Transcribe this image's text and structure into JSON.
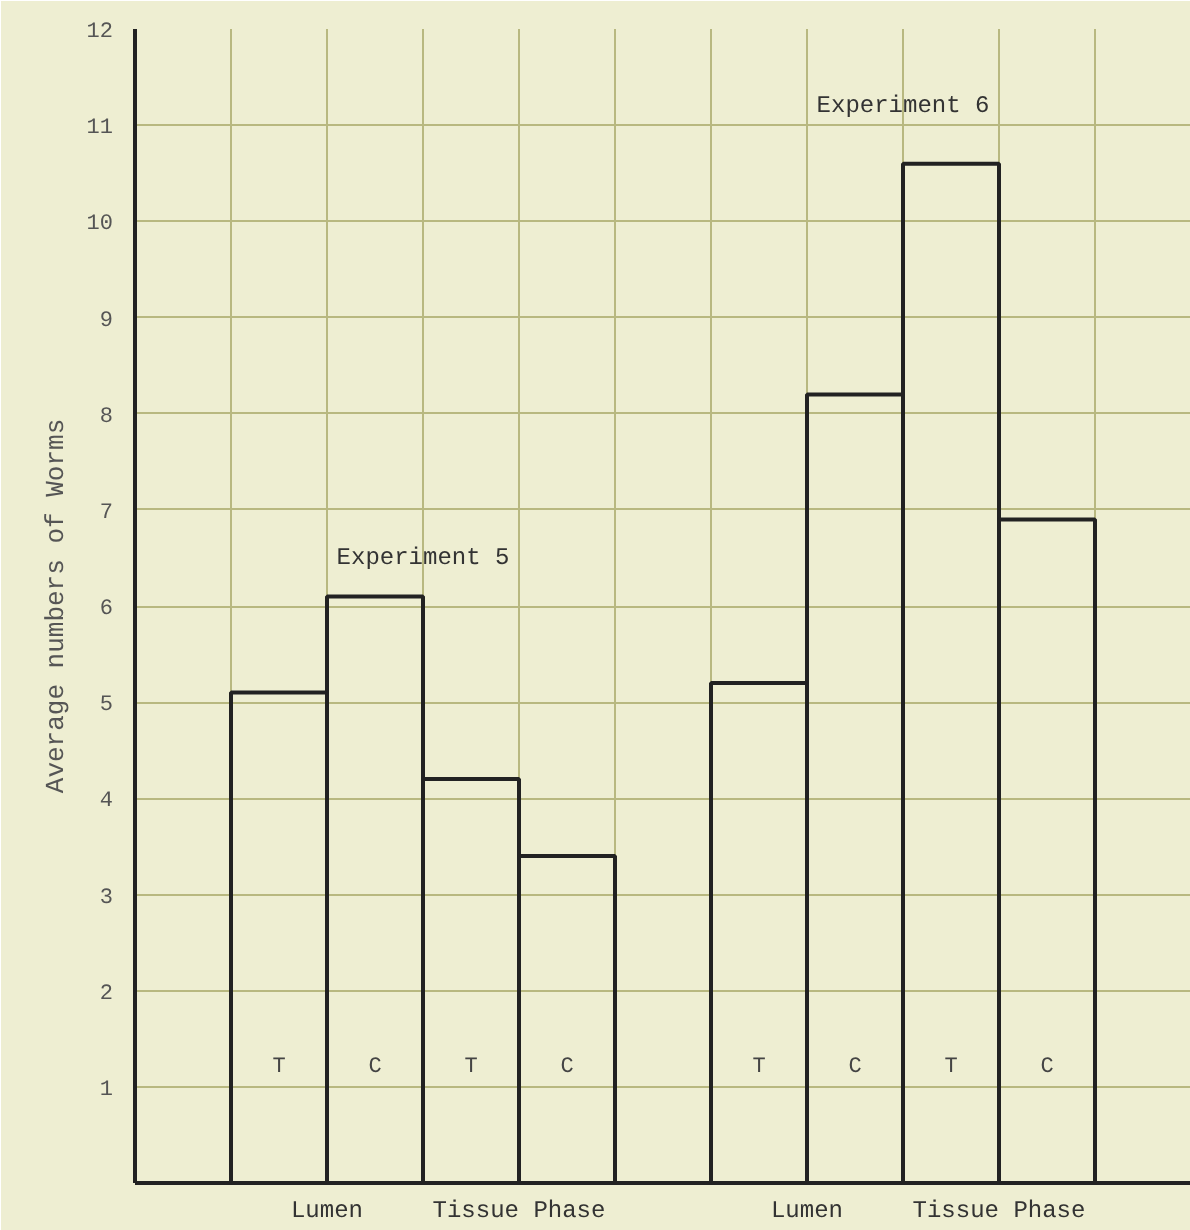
{
  "chart_data": {
    "type": "bar",
    "ylabel": "Average numbers of Worms",
    "categories": [
      null,
      "T",
      "C",
      "T",
      "C",
      null,
      "T",
      "C",
      "T",
      "C",
      null
    ],
    "values": [
      null,
      5.1,
      6.1,
      4.2,
      3.4,
      null,
      5.2,
      8.2,
      10.6,
      6.9,
      null
    ],
    "color": "#222222",
    "ylim": [
      0,
      12
    ],
    "yticks": [
      {
        "value": 0,
        "label": null
      },
      1,
      2,
      3,
      4,
      5,
      6,
      7,
      8,
      9,
      10,
      11,
      12
    ],
    "grid": true,
    "annotations": [
      "Experiment 5",
      "Experiment 6",
      "Lumen",
      "Tissue Phase",
      "Lumen",
      "Tissue Phase"
    ]
  }
}
